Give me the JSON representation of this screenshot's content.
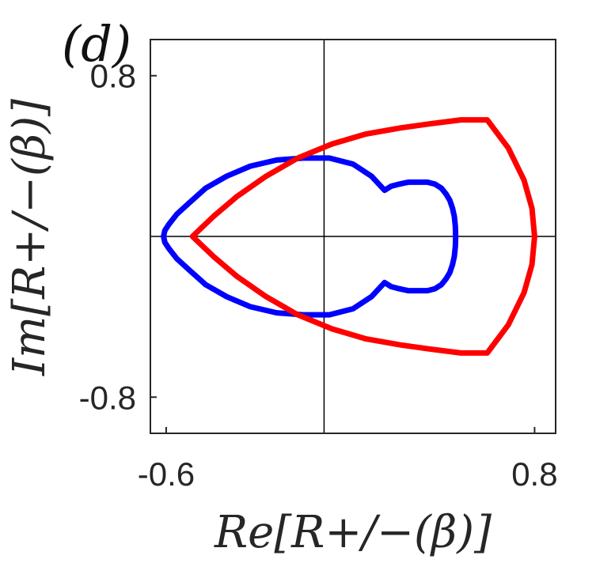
{
  "panel_label": "(d)",
  "chart_data": {
    "type": "line",
    "xlabel": "Re[R+/−(β)]",
    "ylabel": "Im[R+/−(β)]",
    "xlim": [
      -0.66,
      0.88
    ],
    "ylim": [
      -0.98,
      0.98
    ],
    "xticks": [
      -0.6,
      0.8
    ],
    "xtick_labels": [
      "-0.6",
      "0.8"
    ],
    "yticks": [
      -0.8,
      0.8
    ],
    "ytick_labels": [
      "-0.8",
      "0.8"
    ],
    "grid": false,
    "zero_lines": true,
    "series": [
      {
        "color": "#0000ff",
        "x": [
          0.5,
          0.499,
          0.495,
          0.488,
          0.478,
          0.464,
          0.446,
          0.422,
          0.393,
          0.355,
          0.32,
          0.285,
          0.255,
          0.23,
          0.18,
          0.11,
          0.02,
          -0.08,
          -0.18,
          -0.28,
          -0.37,
          -0.45,
          -0.51,
          -0.56,
          -0.59,
          -0.605,
          -0.61,
          -0.605,
          -0.59,
          -0.56,
          -0.51,
          -0.45,
          -0.37,
          -0.28,
          -0.18,
          -0.08,
          0.02,
          0.11,
          0.18,
          0.23,
          0.255,
          0.285,
          0.32,
          0.355,
          0.393,
          0.422,
          0.446,
          0.464,
          0.478,
          0.488,
          0.495,
          0.499,
          0.5
        ],
        "y": [
          0.0,
          0.05,
          0.1,
          0.14,
          0.18,
          0.21,
          0.24,
          0.26,
          0.27,
          0.27,
          0.27,
          0.26,
          0.25,
          0.23,
          0.3,
          0.36,
          0.39,
          0.39,
          0.38,
          0.35,
          0.3,
          0.24,
          0.17,
          0.11,
          0.06,
          0.03,
          0.0,
          -0.03,
          -0.06,
          -0.11,
          -0.17,
          -0.24,
          -0.3,
          -0.35,
          -0.38,
          -0.39,
          -0.39,
          -0.36,
          -0.3,
          -0.23,
          -0.25,
          -0.26,
          -0.27,
          -0.27,
          -0.27,
          -0.26,
          -0.24,
          -0.21,
          -0.18,
          -0.14,
          -0.1,
          -0.05,
          0.0
        ]
      },
      {
        "color": "#ff0000",
        "x": [
          -0.5,
          -0.42,
          -0.33,
          -0.22,
          -0.1,
          0.03,
          0.16,
          0.29,
          0.4,
          0.52,
          0.62,
          0.7,
          0.76,
          0.79,
          0.8,
          0.79,
          0.76,
          0.7,
          0.62,
          0.52,
          0.4,
          0.29,
          0.16,
          0.03,
          -0.1,
          -0.22,
          -0.33,
          -0.42,
          -0.5
        ],
        "y": [
          0.0,
          0.1,
          0.2,
          0.3,
          0.39,
          0.46,
          0.51,
          0.54,
          0.56,
          0.58,
          0.58,
          0.44,
          0.28,
          0.14,
          0.0,
          -0.14,
          -0.28,
          -0.44,
          -0.58,
          -0.58,
          -0.56,
          -0.54,
          -0.51,
          -0.46,
          -0.39,
          -0.3,
          -0.2,
          -0.1,
          0.0
        ]
      }
    ]
  }
}
